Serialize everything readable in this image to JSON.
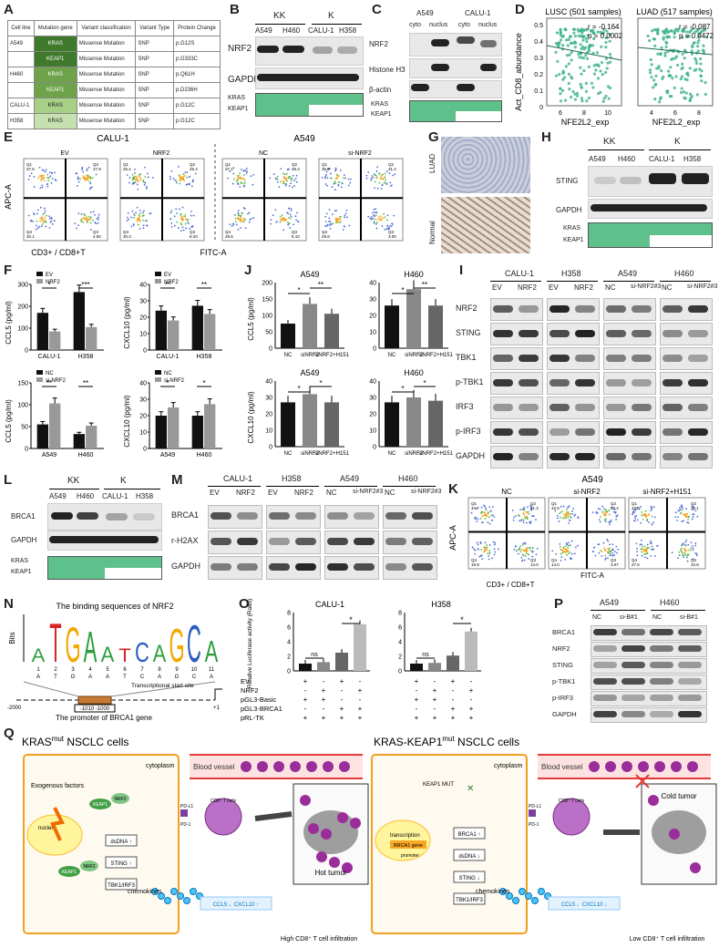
{
  "labels": {
    "A": "A",
    "B": "B",
    "C": "C",
    "D": "D",
    "E": "E",
    "F": "F",
    "G": "G",
    "H": "H",
    "I": "I",
    "J": "J",
    "K": "K",
    "L": "L",
    "M": "M",
    "N": "N",
    "O": "O",
    "P": "P",
    "Q": "Q"
  },
  "tableA": {
    "headers": [
      "Cell line",
      "Mutation gene",
      "Variant classification",
      "Variant Type",
      "Protein Change"
    ],
    "rows": [
      [
        "A549",
        "KRAS",
        "Missense Mutation",
        "SNP",
        "p.G12S"
      ],
      [
        "",
        "KEAP1",
        "Missense Mutation",
        "SNP",
        "p.G333C"
      ],
      [
        "H460",
        "KRAS",
        "Missense Mutation",
        "SNP",
        "p.Q61H"
      ],
      [
        "",
        "KEAP1",
        "Missense Mutation",
        "SNP",
        "p.D236H"
      ],
      [
        "CALU-1",
        "KRAS",
        "Missense Mutation",
        "SNP",
        "p.G12C"
      ],
      [
        "H358",
        "KRAS",
        "Missense Mutation",
        "SNP",
        "p.G12C"
      ]
    ]
  },
  "B": {
    "kk": "KK",
    "k": "K",
    "cols": [
      "A549",
      "H460",
      "CALU-1",
      "H358"
    ],
    "rows": [
      "NRF2",
      "GAPDH"
    ],
    "mut": [
      "KRAS",
      "KEAP1"
    ]
  },
  "C": {
    "lines": [
      "A549",
      "CALU-1"
    ],
    "frac": [
      "cyto",
      "nuclus",
      "cyto",
      "nuclus"
    ],
    "rows": [
      "NRF2",
      "Histone H3",
      "β-actin"
    ],
    "mut": [
      "KRAS",
      "KEAP1"
    ]
  },
  "D": {
    "t1": "LUSC (501 samples)",
    "t2": "LUAD (517 samples)",
    "r1": "r = -0.164",
    "p1": "p = 0.0002",
    "r2": "r = -0.087",
    "p2": "p = 0.0472",
    "ylabel": "Act_CD8_abundance",
    "xlabel": "NFE2L2_exp",
    "ticks1": [
      "6",
      "8",
      "10"
    ],
    "ticks2": [
      "4",
      "6",
      "8"
    ],
    "yticks": [
      "0.5",
      "0.4",
      "0.3",
      "0.2",
      "0.1",
      "0"
    ]
  },
  "E": {
    "calu": "CALU-1",
    "a549": "A549",
    "conds": [
      "EV",
      "NRF2",
      "NC",
      "si-NRF2"
    ],
    "ylabel": "APC-A",
    "xlabel": "FITC-A",
    "bottom": "CD3+ / CD8+T",
    "quads": [
      [
        "37.5",
        "27.9",
        "4.50",
        "30.1"
      ],
      [
        "26.2",
        "25.4",
        "8.20",
        "30.3"
      ],
      [
        "37.1",
        "28.3",
        "6.10",
        "28.6"
      ],
      [
        "35.8",
        "31.4",
        "3.00",
        "29.8"
      ]
    ]
  },
  "G": {
    "t": "LUAD",
    "b": "Normal"
  },
  "H": {
    "kk": "KK",
    "k": "K",
    "cols": [
      "A549",
      "H460",
      "CALU-1",
      "H358"
    ],
    "rows": [
      "STING",
      "GAPDH"
    ],
    "mut": [
      "KRAS",
      "KEAP1"
    ]
  },
  "F": {
    "charts": [
      {
        "ylabel": "CCL5 (pg/ml)",
        "cats": [
          "CALU-1",
          "H358"
        ],
        "leg": [
          "EV",
          "NRF2"
        ],
        "v": [
          [
            170,
            265
          ],
          [
            85,
            105
          ]
        ],
        "yt": [
          "0",
          "100",
          "200",
          "300"
        ],
        "sig": [
          "*",
          "***"
        ]
      },
      {
        "ylabel": "CXCL10 (pg/ml)",
        "cats": [
          "CALU-1",
          "H358"
        ],
        "leg": [
          "EV",
          "NRF2"
        ],
        "v": [
          [
            24,
            27
          ],
          [
            18,
            22
          ]
        ],
        "yt": [
          "0",
          "10",
          "20",
          "30",
          "40"
        ],
        "sig": [
          "**",
          "**"
        ]
      },
      {
        "ylabel": "CCL5 (pg/ml)",
        "cats": [
          "A549",
          "H460"
        ],
        "leg": [
          "NC",
          "si-NRF2"
        ],
        "v": [
          [
            55,
            33
          ],
          [
            103,
            52
          ]
        ],
        "yt": [
          "0",
          "50",
          "100",
          "150"
        ],
        "sig": [
          "**",
          "**"
        ]
      },
      {
        "ylabel": "CXCL10 (pg/ml)",
        "cats": [
          "A549",
          "H460"
        ],
        "leg": [
          "NC",
          "si-NRF2"
        ],
        "v": [
          [
            20,
            20
          ],
          [
            25,
            27
          ]
        ],
        "yt": [
          "0",
          "10",
          "20",
          "30",
          "40"
        ],
        "sig": [
          "*",
          "*"
        ]
      }
    ]
  },
  "J": {
    "charts": [
      {
        "title": "A549",
        "ylabel": "CCL5 (pg/ml)",
        "cats": [
          "NC",
          "siNRF2",
          "siNRF2+H151"
        ],
        "v": [
          75,
          135,
          105
        ],
        "yt": [
          "0",
          "50",
          "100",
          "150",
          "200"
        ],
        "sig": [
          "*",
          "**"
        ]
      },
      {
        "title": "H460",
        "ylabel": "",
        "cats": [
          "NC",
          "siNRF2",
          "siNRF2+H151"
        ],
        "v": [
          26,
          36,
          26
        ],
        "yt": [
          "0",
          "10",
          "20",
          "30",
          "40"
        ],
        "sig": [
          "*",
          "**"
        ]
      },
      {
        "title": "A549",
        "ylabel": "CXCL10 (pg/ml)",
        "cats": [
          "NC",
          "siNRF2",
          "siNRF2+H151"
        ],
        "v": [
          27,
          32,
          27
        ],
        "yt": [
          "0",
          "10",
          "20",
          "30",
          "40"
        ],
        "sig": [
          "*",
          "*"
        ]
      },
      {
        "title": "H460",
        "ylabel": "",
        "cats": [
          "NC",
          "siNRF2",
          "siNRF2+H151"
        ],
        "v": [
          27,
          30,
          28
        ],
        "yt": [
          "0",
          "10",
          "20",
          "30",
          "40"
        ],
        "sig": [
          "*",
          "*"
        ]
      }
    ]
  },
  "I": {
    "groups": [
      "CALU-1",
      "H358",
      "A549",
      "H460"
    ],
    "sub": [
      "EV",
      "NRF2",
      "EV",
      "NRF2",
      "NC",
      "si-NRF2#3",
      "NC",
      "si-NRF2#3"
    ],
    "rows": [
      "NRF2",
      "STING",
      "TBK1",
      "p-TBK1",
      "IRF3",
      "p-IRF3",
      "GAPDH"
    ]
  },
  "L": {
    "kk": "KK",
    "k": "K",
    "cols": [
      "A549",
      "H460",
      "CALU-1",
      "H358"
    ],
    "rows": [
      "BRCA1",
      "GAPDH"
    ],
    "mut": [
      "KRAS",
      "KEAP1"
    ]
  },
  "M": {
    "groups": [
      "CALU-1",
      "H358",
      "A549",
      "H460"
    ],
    "sub": [
      "EV",
      "NRF2",
      "EV",
      "NRF2",
      "NC",
      "si-NRF2#3",
      "NC",
      "si-NRF2#3"
    ],
    "rows": [
      "BRCA1",
      "r-H2AX",
      "GAPDH"
    ]
  },
  "K": {
    "title": "A549",
    "conds": [
      "NC",
      "si-NRF2",
      "si-NRF2+H151"
    ],
    "ylabel": "APC-A",
    "xlabel": "FITC-A",
    "bottom": "CD3+ / CD8+T",
    "quads": [
      [
        "34.7",
        "31.4",
        "14.0",
        "19.9"
      ],
      [
        "32.5",
        "50.4",
        "3.07",
        "14.0"
      ],
      [
        "33.6",
        "28.1",
        "10.8",
        "27.5"
      ]
    ]
  },
  "N": {
    "title": "The binding sequences of NRF2",
    "bits": "Bits",
    "letters": [
      "A",
      "T",
      "G",
      "A",
      "A",
      "T",
      "C",
      "A",
      "G",
      "C",
      "A"
    ],
    "pos": [
      "1",
      "2",
      "3",
      "4",
      "5",
      "6",
      "7",
      "8",
      "9",
      "10",
      "11"
    ],
    "tss": "Transcriptional start site",
    "left": "-2000",
    "right": "+1",
    "range": "-1010  -1000",
    "caption": "The promoter of  BRCA1 gene"
  },
  "O": {
    "t1": "CALU-1",
    "t2": "H358",
    "ylabel": "Relative Luciferase activity (Ratio)",
    "yt": [
      "0",
      "2",
      "4",
      "6",
      "8"
    ],
    "v1": [
      1,
      1.2,
      2.5,
      6.4
    ],
    "v2": [
      1,
      1.1,
      2.1,
      5.4
    ],
    "ns": "ns",
    "star": "*",
    "rowlabels": [
      "EV",
      "NRF2",
      "pGL3-Basic",
      "pGL3-BRCA1",
      "pRL-TK"
    ],
    "signs": [
      [
        "+",
        "-",
        "+",
        "-"
      ],
      [
        "-",
        "+",
        "-",
        "+"
      ],
      [
        "+",
        "+",
        "-",
        "-"
      ],
      [
        "-",
        "-",
        "+",
        "+"
      ],
      [
        "+",
        "+",
        "+",
        "+"
      ]
    ]
  },
  "P": {
    "lines": [
      "A549",
      "H460"
    ],
    "sub": [
      "NC",
      "si-B#1",
      "NC",
      "si-B#1"
    ],
    "rows": [
      "BRCA1",
      "NRF2",
      "STING",
      "p-TBK1",
      "p-IRF3",
      "GAPDH"
    ]
  },
  "Q": {
    "t1": "KRAS",
    "t1sup": "mut",
    "t1b": " NSCLC cells",
    "t2": "KRAS-KEAP1",
    "t2sup": "mut",
    "t2b": " NSCLC cells",
    "exo": "Exogenous factors",
    "cyto": "cytoplasm",
    "nuclei": "nuclei",
    "dsdna": "dsDNA ↑",
    "sting": "STING ↑",
    "tbk": "TBK1/IRF3",
    "chemo": "chemokines",
    "ccl": "CCL5 、CXCL10 ↑",
    "hot": "Hot tumor",
    "high": "High CD8⁺ T cell infiltration",
    "vessel": "Blood vessel",
    "pdl1": "PD-L1",
    "pd1": "PD-1",
    "keap": "KEAP1",
    "nrf2": "NRF2",
    "cd8": "CD8⁺ T cells",
    "keapmut": "KEAP1 MUT",
    "transc": "transcription",
    "brcagene": "BRCA1 gene",
    "promoter": "promoter",
    "brca1": "BRCA1 ↑",
    "dsdna2": "dsDNA ↓",
    "sting2": "STING ↓",
    "tbk2": "TBK1/IRF3",
    "ccl2": "CCL5 、CXCL10 ↓",
    "cold": "Cold tumor",
    "low": "Low CD8⁺ T cell infiltration"
  }
}
